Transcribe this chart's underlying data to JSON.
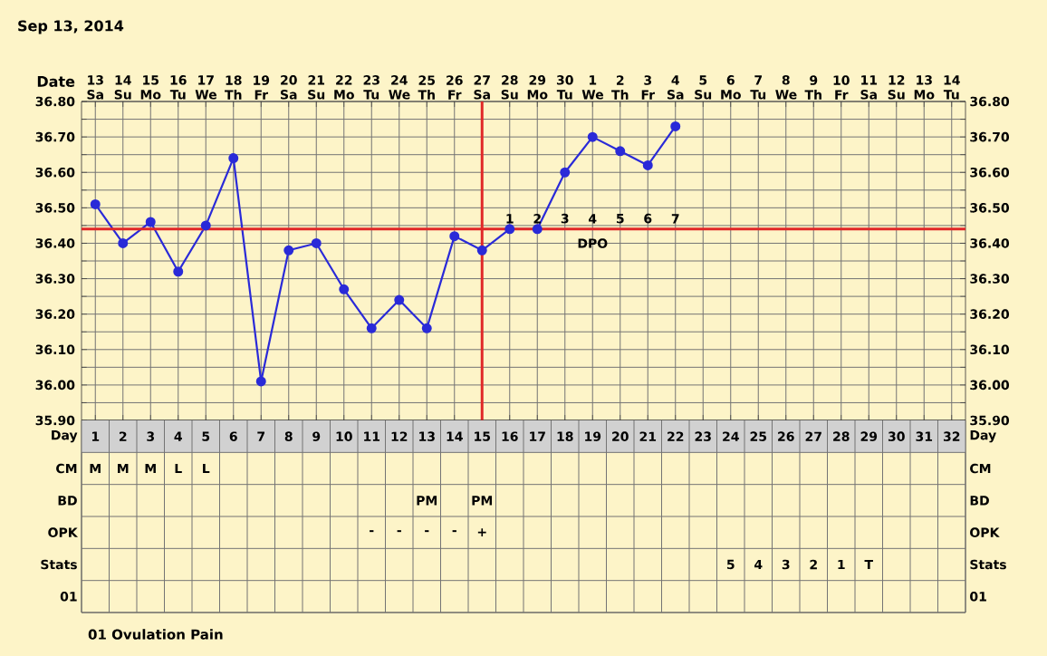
{
  "chart_data": [
    {
      "type": "line",
      "title": "Sep 13, 2014",
      "xlabel": "Date",
      "categories": [
        "13 Sa",
        "14 Su",
        "15 Mo",
        "16 Tu",
        "17 We",
        "18 Th",
        "19 Fr",
        "20 Sa",
        "21 Su",
        "22 Mo",
        "23 Tu",
        "24 We",
        "25 Th",
        "26 Fr",
        "27 Sa",
        "28 Su",
        "29 Mo",
        "30 Tu",
        "1 We",
        "2 Th",
        "3 Fr",
        "4 Sa",
        "5 Su",
        "6 Mo",
        "7 Tu",
        "8 We",
        "9 Th",
        "10 Fr",
        "11 Sa",
        "12 Su",
        "13 Mo",
        "14 Tu"
      ],
      "values": [
        36.51,
        36.4,
        36.46,
        36.32,
        36.45,
        36.64,
        36.01,
        36.38,
        36.4,
        36.27,
        36.16,
        36.24,
        36.16,
        36.42,
        36.38,
        36.44,
        36.44,
        36.6,
        36.7,
        36.66,
        36.62,
        36.73,
        null,
        null,
        null,
        null,
        null,
        null,
        null,
        null,
        null,
        null
      ],
      "color": "#2a2ad8",
      "marker": "circle",
      "grid": true,
      "ylim": [
        35.9,
        36.8
      ],
      "yticks": [
        {
          "value": 35.9,
          "label": "35.90"
        },
        {
          "value": 36.0,
          "label": "36.00"
        },
        {
          "value": 36.1,
          "label": "36.10"
        },
        {
          "value": 36.2,
          "label": "36.20"
        },
        {
          "value": 36.3,
          "label": "36.30"
        },
        {
          "value": 36.4,
          "label": "36.40"
        },
        {
          "value": 36.5,
          "label": "36.50"
        },
        {
          "value": 36.6,
          "label": "36.60"
        },
        {
          "value": 36.7,
          "label": "36.70"
        },
        {
          "value": 36.8,
          "label": "36.80"
        }
      ],
      "y2lim": [
        35.9,
        36.8
      ],
      "y2ticks": [
        {
          "value": 35.9,
          "label": "35.90"
        },
        {
          "value": 36.0,
          "label": "36.00"
        },
        {
          "value": 36.1,
          "label": "36.10"
        },
        {
          "value": 36.2,
          "label": "36.20"
        },
        {
          "value": 36.3,
          "label": "36.30"
        },
        {
          "value": 36.4,
          "label": "36.40"
        },
        {
          "value": 36.5,
          "label": "36.50"
        },
        {
          "value": 36.6,
          "label": "36.60"
        },
        {
          "value": 36.7,
          "label": "36.70"
        },
        {
          "value": 36.8,
          "label": "36.80"
        }
      ],
      "ref_lines": [
        {
          "axis": "y",
          "value": 36.44,
          "color": "#e02828"
        },
        {
          "axis": "x",
          "value": "27 Sa",
          "color": "#e02828"
        }
      ],
      "annotations": [
        "1",
        "2",
        "3",
        "4",
        "5",
        "6",
        "7",
        "DPO"
      ]
    },
    {
      "type": "heatmap",
      "xlabel": "Day",
      "categories": [
        "1",
        "2",
        "3",
        "4",
        "5",
        "6",
        "7",
        "8",
        "9",
        "10",
        "11",
        "12",
        "13",
        "14",
        "15",
        "16",
        "17",
        "18",
        "19",
        "20",
        "21",
        "22",
        "23",
        "24",
        "25",
        "26",
        "27",
        "28",
        "29",
        "30",
        "31",
        "32"
      ],
      "y_categories": [
        "CM",
        "BD",
        "OPK",
        "Stats",
        "01"
      ],
      "y2_categories": [
        "CM",
        "BD",
        "OPK",
        "Stats",
        "01"
      ],
      "cells": [
        [
          null,
          null,
          null,
          null,
          null,
          null,
          null,
          null,
          null,
          null,
          null,
          null,
          null,
          null,
          null,
          null,
          null,
          null,
          null,
          null,
          null,
          null,
          null,
          null,
          null,
          null,
          null,
          null,
          null,
          null,
          null,
          null
        ],
        [
          null,
          null,
          null,
          null,
          null,
          null,
          null,
          null,
          null,
          null,
          null,
          null,
          null,
          null,
          null,
          null,
          null,
          null,
          null,
          null,
          null,
          null,
          null,
          null,
          null,
          null,
          null,
          null,
          null,
          null,
          null,
          null
        ],
        [
          null,
          null,
          null,
          null,
          null,
          null,
          null,
          null,
          null,
          null,
          null,
          null,
          null,
          null,
          null,
          null,
          null,
          null,
          null,
          null,
          null,
          null,
          null,
          null,
          null,
          null,
          null,
          null,
          null,
          null,
          null,
          null
        ],
        [
          null,
          null,
          null,
          null,
          null,
          null,
          null,
          null,
          null,
          null,
          null,
          null,
          null,
          null,
          null,
          null,
          null,
          null,
          null,
          null,
          null,
          null,
          null,
          null,
          null,
          null,
          null,
          null,
          null,
          null,
          null,
          null
        ],
        [
          null,
          null,
          null,
          null,
          null,
          null,
          null,
          null,
          null,
          null,
          null,
          null,
          null,
          null,
          null,
          null,
          null,
          null,
          null,
          null,
          null,
          null,
          null,
          null,
          null,
          null,
          null,
          null,
          null,
          null,
          null,
          null
        ]
      ],
      "cell_labels": [
        [
          "M",
          "M",
          "M",
          "L",
          "L",
          null,
          null,
          null,
          null,
          null,
          null,
          null,
          null,
          null,
          null,
          null,
          null,
          null,
          null,
          null,
          null,
          null,
          null,
          null,
          null,
          null,
          null,
          null,
          null,
          null,
          null,
          null
        ],
        [
          null,
          null,
          null,
          null,
          null,
          null,
          null,
          null,
          null,
          null,
          null,
          null,
          "PM",
          null,
          "PM",
          null,
          null,
          null,
          null,
          null,
          null,
          null,
          null,
          null,
          null,
          null,
          null,
          null,
          null,
          null,
          null,
          null
        ],
        [
          null,
          null,
          null,
          null,
          null,
          null,
          null,
          null,
          null,
          null,
          "-",
          "-",
          "-",
          "-",
          "+",
          null,
          null,
          null,
          null,
          null,
          null,
          null,
          null,
          null,
          null,
          null,
          null,
          null,
          null,
          null,
          null,
          null
        ],
        [
          null,
          null,
          null,
          null,
          null,
          null,
          null,
          null,
          null,
          null,
          null,
          null,
          null,
          null,
          null,
          null,
          null,
          null,
          null,
          null,
          null,
          null,
          null,
          "5",
          "4",
          "3",
          "2",
          "1",
          "T",
          null,
          null,
          null
        ],
        [
          null,
          null,
          null,
          null,
          null,
          null,
          null,
          null,
          null,
          null,
          null,
          null,
          null,
          null,
          null,
          null,
          null,
          null,
          null,
          null,
          null,
          null,
          null,
          null,
          null,
          null,
          null,
          null,
          null,
          null,
          null,
          null
        ]
      ],
      "annotations": [
        "01 Ovulation Pain"
      ]
    }
  ]
}
